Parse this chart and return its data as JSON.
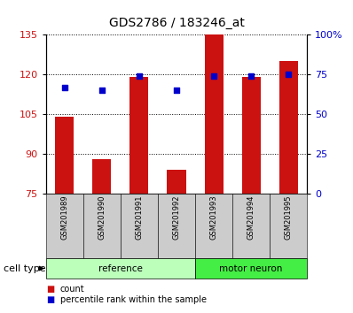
{
  "title": "GDS2786 / 183246_at",
  "samples": [
    "GSM201989",
    "GSM201990",
    "GSM201991",
    "GSM201992",
    "GSM201993",
    "GSM201994",
    "GSM201995"
  ],
  "counts": [
    104,
    88,
    119,
    84,
    135,
    119,
    125
  ],
  "percentiles": [
    67,
    65,
    74,
    65,
    74,
    74,
    75
  ],
  "ylim_left": [
    75,
    135
  ],
  "ylim_right": [
    0,
    100
  ],
  "yticks_left": [
    75,
    90,
    105,
    120,
    135
  ],
  "yticks_right": [
    0,
    25,
    50,
    75,
    100
  ],
  "ytick_labels_right": [
    "0",
    "25",
    "50",
    "75",
    "100%"
  ],
  "bar_color": "#cc1111",
  "scatter_color": "#0000cc",
  "groups": [
    {
      "label": "reference",
      "start": 0,
      "end": 4,
      "color": "#bbffbb"
    },
    {
      "label": "motor neuron",
      "start": 4,
      "end": 7,
      "color": "#44ee44"
    }
  ],
  "cell_type_label": "cell type",
  "legend_count_label": "count",
  "legend_pct_label": "percentile rank within the sample",
  "tick_bg_color": "#cccccc",
  "background_color": "#ffffff"
}
